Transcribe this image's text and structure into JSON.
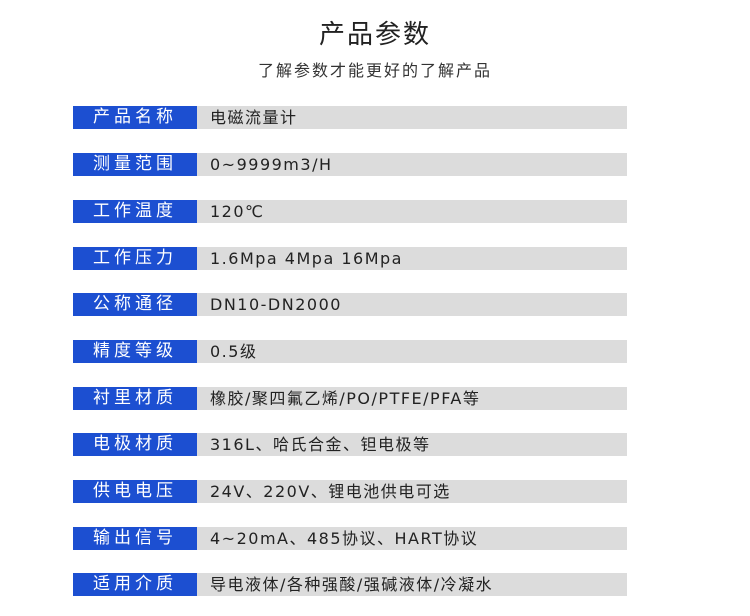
{
  "header": {
    "title": "产品参数",
    "subtitle": "了解参数才能更好的了解产品"
  },
  "colors": {
    "label_bg": "#1c4fd1",
    "value_bg": "#dcdcdc"
  },
  "specs": [
    {
      "label": "产品名称",
      "value": "电磁流量计"
    },
    {
      "label": "测量范围",
      "value": "0~9999m3/H"
    },
    {
      "label": "工作温度",
      "value": "120℃"
    },
    {
      "label": "工作压力",
      "value": "1.6Mpa  4Mpa  16Mpa"
    },
    {
      "label": "公称通径",
      "value": "DN10-DN2000"
    },
    {
      "label": "精度等级",
      "value": "0.5级"
    },
    {
      "label": "衬里材质",
      "value": "橡胶/聚四氟乙烯/PO/PTFE/PFA等"
    },
    {
      "label": "电极材质",
      "value": "316L、哈氏合金、钽电极等"
    },
    {
      "label": "供电电压",
      "value": "24V、220V、锂电池供电可选"
    },
    {
      "label": "输出信号",
      "value": "4~20mA、485协议、HART协议"
    },
    {
      "label": "适用介质",
      "value": "导电液体/各种强酸/强碱液体/冷凝水"
    }
  ]
}
